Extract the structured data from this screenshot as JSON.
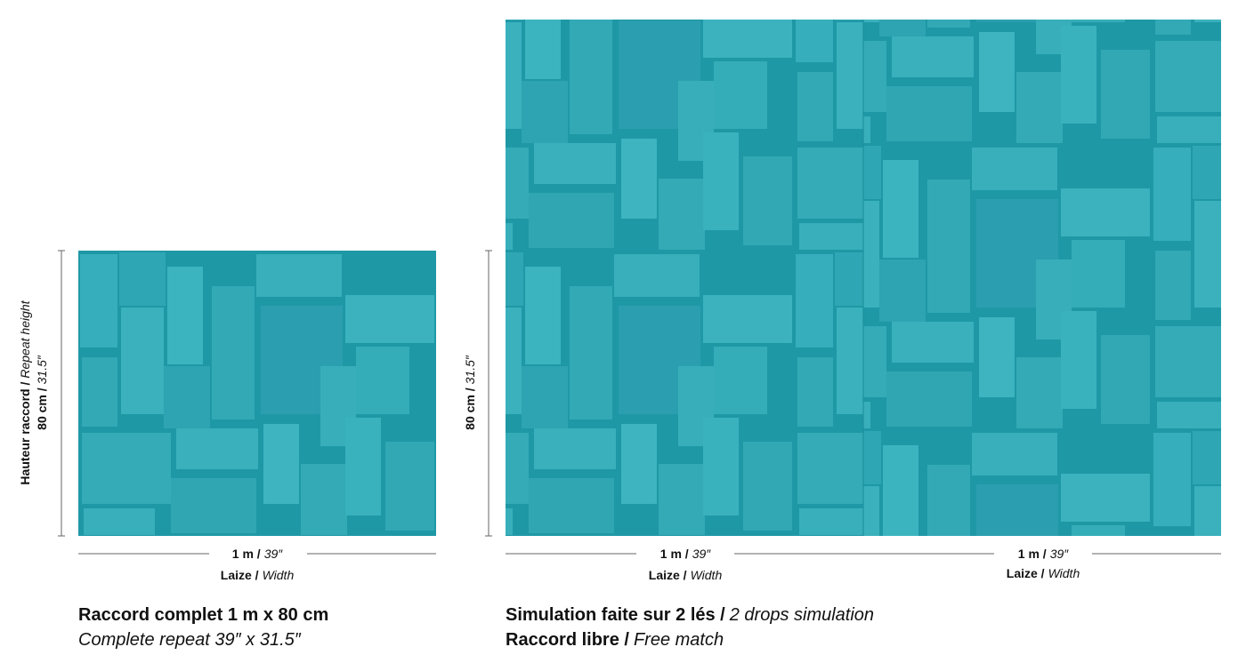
{
  "left": {
    "height_label": {
      "fr": "Hauteur raccord /",
      "en": "Repeat height"
    },
    "height_value": {
      "metric": "80 cm /",
      "imperial": "31.5″"
    },
    "width_value": {
      "metric": "1 m /",
      "imperial": "39″"
    },
    "width_label": {
      "fr": "Laize /",
      "en": "Width"
    },
    "caption": {
      "line1": "Raccord complet 1 m x 80 cm",
      "line2": "Complete repeat 39″ x 31.5″"
    }
  },
  "right": {
    "height_value": {
      "metric": "80 cm /",
      "imperial": "31.5″"
    },
    "widths": [
      {
        "metric": "1 m /",
        "imperial": "39″",
        "fr": "Laize /",
        "en": "Width"
      },
      {
        "metric": "1 m /",
        "imperial": "39″",
        "fr": "Laize /",
        "en": "Width"
      }
    ],
    "caption": {
      "line1": {
        "fr": "Simulation faite sur 2 lés /",
        "en": "2 drops simulation"
      },
      "line2": {
        "fr": "Raccord libre /",
        "en": "Free match"
      }
    }
  }
}
